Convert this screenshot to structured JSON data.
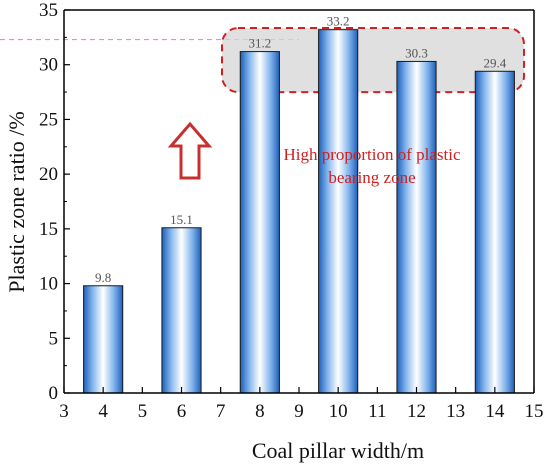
{
  "chart_data": {
    "type": "bar",
    "x": [
      4,
      6,
      8,
      10,
      12,
      14
    ],
    "values": [
      9.8,
      15.1,
      31.2,
      33.2,
      30.3,
      29.4
    ],
    "data_labels": [
      "9.8",
      "15.1",
      "31.2",
      "33.2",
      "30.3",
      "29.4"
    ],
    "xlabel": "Coal pillar width/m",
    "ylabel": "Plastic zone ratio /%",
    "xlim": [
      3,
      15
    ],
    "ylim": [
      0,
      35
    ],
    "x_ticks": [
      3,
      4,
      5,
      6,
      7,
      8,
      9,
      10,
      11,
      12,
      13,
      14,
      15
    ],
    "y_ticks": [
      0,
      5,
      10,
      15,
      20,
      25,
      30,
      35
    ],
    "grid": false,
    "bar_color": "#3a7fd0",
    "annotation": {
      "lines": [
        "High proportion of plastic",
        "bearing zone"
      ],
      "color": "#d02020",
      "highlight_y_range": [
        27.5,
        35
      ]
    },
    "reference_line_y": 32.3
  }
}
